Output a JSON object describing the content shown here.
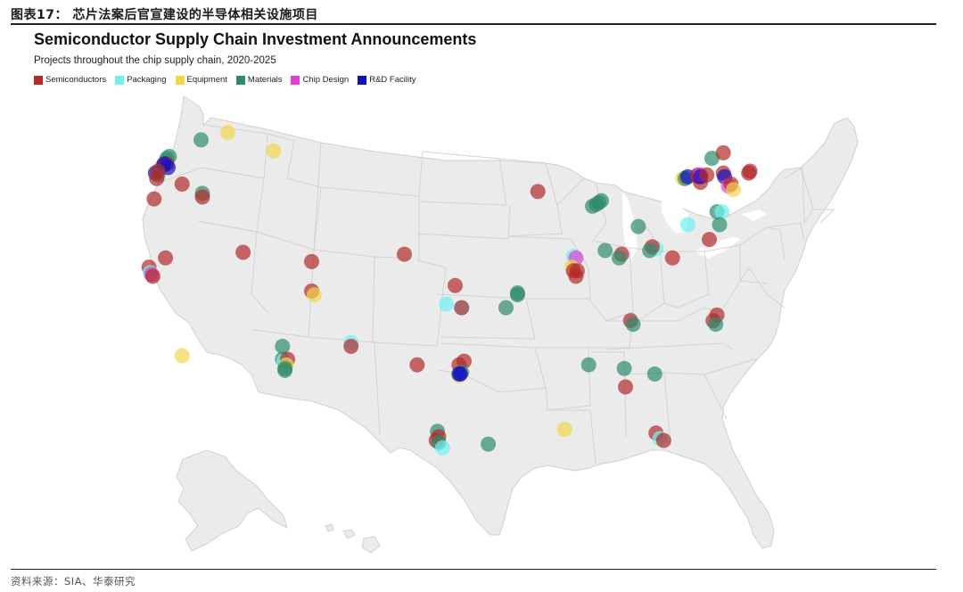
{
  "figure": {
    "title": "图表17： 芯片法案后官宣建设的半导体相关设施项目",
    "source": "资料来源：SIA、华泰研究"
  },
  "chart_data": {
    "type": "scatter",
    "title": "Semiconductor Supply Chain Investment Announcements",
    "subtitle": "Projects throughout the chip supply chain, 2020-2025",
    "legend_position": "top-left",
    "categories": [
      {
        "key": "sem",
        "name": "Semiconductors",
        "color": "#b22a2a"
      },
      {
        "key": "pkg",
        "name": "Packaging",
        "color": "#6ff2f2"
      },
      {
        "key": "eqp",
        "name": "Equipment",
        "color": "#f2d54b"
      },
      {
        "key": "mat",
        "name": "Materials",
        "color": "#2f8c6c"
      },
      {
        "key": "chp",
        "name": "Chip Design",
        "color": "#e23fd2"
      },
      {
        "key": "rnd",
        "name": "R&D Facility",
        "color": "#1111c4"
      }
    ],
    "points": [
      {
        "lon": -123.6,
        "lat": 46.1,
        "cat": "pkg"
      },
      {
        "lon": -123.6,
        "lat": 46.2,
        "cat": "mat"
      },
      {
        "lon": -123.4,
        "lat": 46.3,
        "cat": "mat"
      },
      {
        "lon": -123.6,
        "lat": 45.9,
        "cat": "sem"
      },
      {
        "lon": -123.9,
        "lat": 45.8,
        "cat": "sem"
      },
      {
        "lon": -123.8,
        "lat": 45.9,
        "cat": "rnd"
      },
      {
        "lon": -123.5,
        "lat": 45.7,
        "cat": "rnd"
      },
      {
        "lon": -124.5,
        "lat": 45.4,
        "cat": "rnd"
      },
      {
        "lon": -124.3,
        "lat": 45.3,
        "cat": "mat"
      },
      {
        "lon": -124.3,
        "lat": 45.5,
        "cat": "sem"
      },
      {
        "lon": -124.4,
        "lat": 45.1,
        "cat": "sem"
      },
      {
        "lon": -122.4,
        "lat": 44.8,
        "cat": "sem"
      },
      {
        "lon": -124.6,
        "lat": 44.0,
        "cat": "sem"
      },
      {
        "lon": -120.9,
        "lat": 47.2,
        "cat": "mat"
      },
      {
        "lon": -118.8,
        "lat": 47.6,
        "cat": "eqp"
      },
      {
        "lon": -115.2,
        "lat": 46.6,
        "cat": "eqp"
      },
      {
        "lon": -120.8,
        "lat": 44.3,
        "cat": "mat"
      },
      {
        "lon": -120.8,
        "lat": 44.1,
        "cat": "sem"
      },
      {
        "lon": -123.7,
        "lat": 40.8,
        "cat": "sem"
      },
      {
        "lon": -125.0,
        "lat": 40.3,
        "cat": "sem"
      },
      {
        "lon": -124.9,
        "lat": 40.0,
        "cat": "pkg"
      },
      {
        "lon": -124.8,
        "lat": 39.9,
        "cat": "chp"
      },
      {
        "lon": -124.7,
        "lat": 39.8,
        "cat": "sem"
      },
      {
        "lon": -117.6,
        "lat": 41.1,
        "cat": "sem"
      },
      {
        "lon": -122.4,
        "lat": 35.5,
        "cat": "eqp"
      },
      {
        "lon": -112.2,
        "lat": 40.6,
        "cat": "sem"
      },
      {
        "lon": -112.2,
        "lat": 39.0,
        "cat": "sem"
      },
      {
        "lon": -112.0,
        "lat": 38.8,
        "cat": "eqp"
      },
      {
        "lon": -114.5,
        "lat": 36.0,
        "cat": "mat"
      },
      {
        "lon": -114.5,
        "lat": 35.3,
        "cat": "mat"
      },
      {
        "lon": -114.4,
        "lat": 35.2,
        "cat": "pkg"
      },
      {
        "lon": -114.1,
        "lat": 35.3,
        "cat": "sem"
      },
      {
        "lon": -114.2,
        "lat": 35.0,
        "cat": "eqp"
      },
      {
        "lon": -114.3,
        "lat": 34.8,
        "cat": "mat"
      },
      {
        "lon": -114.3,
        "lat": 34.7,
        "cat": "mat"
      },
      {
        "lon": -109.1,
        "lat": 36.2,
        "cat": "pkg"
      },
      {
        "lon": -109.1,
        "lat": 36.0,
        "cat": "sem"
      },
      {
        "lon": -103.9,
        "lat": 35.0,
        "cat": "sem"
      },
      {
        "lon": -104.9,
        "lat": 41.0,
        "cat": "sem"
      },
      {
        "lon": -100.9,
        "lat": 39.3,
        "cat": "sem"
      },
      {
        "lon": -101.6,
        "lat": 38.3,
        "cat": "pkg"
      },
      {
        "lon": -100.4,
        "lat": 38.1,
        "cat": "pkg"
      },
      {
        "lon": -100.4,
        "lat": 38.1,
        "cat": "sem"
      },
      {
        "lon": -94.4,
        "lat": 44.4,
        "cat": "sem"
      },
      {
        "lon": -96.9,
        "lat": 38.1,
        "cat": "mat"
      },
      {
        "lon": -96.0,
        "lat": 38.9,
        "cat": "mat"
      },
      {
        "lon": -96.0,
        "lat": 38.8,
        "cat": "mat"
      },
      {
        "lon": -100.6,
        "lat": 35.0,
        "cat": "sem"
      },
      {
        "lon": -100.2,
        "lat": 35.2,
        "cat": "sem"
      },
      {
        "lon": -100.6,
        "lat": 34.4,
        "cat": "eqp"
      },
      {
        "lon": -100.4,
        "lat": 34.6,
        "cat": "mat"
      },
      {
        "lon": -100.6,
        "lat": 34.5,
        "cat": "rnd"
      },
      {
        "lon": -100.5,
        "lat": 34.5,
        "cat": "rnd"
      },
      {
        "lon": -102.3,
        "lat": 31.4,
        "cat": "mat"
      },
      {
        "lon": -102.2,
        "lat": 31.1,
        "cat": "sem"
      },
      {
        "lon": -102.4,
        "lat": 30.9,
        "cat": "sem"
      },
      {
        "lon": -102.2,
        "lat": 30.8,
        "cat": "mat"
      },
      {
        "lon": -101.9,
        "lat": 30.5,
        "cat": "pkg"
      },
      {
        "lon": -98.3,
        "lat": 30.7,
        "cat": "mat"
      },
      {
        "lon": -92.3,
        "lat": 31.5,
        "cat": "eqp"
      },
      {
        "lon": -91.6,
        "lat": 40.9,
        "cat": "pkg"
      },
      {
        "lon": -91.4,
        "lat": 40.8,
        "cat": "chp"
      },
      {
        "lon": -91.7,
        "lat": 40.3,
        "cat": "eqp"
      },
      {
        "lon": -91.6,
        "lat": 40.1,
        "cat": "sem"
      },
      {
        "lon": -91.3,
        "lat": 40.1,
        "cat": "sem"
      },
      {
        "lon": -91.4,
        "lat": 39.8,
        "cat": "sem"
      },
      {
        "lon": -90.1,
        "lat": 43.6,
        "cat": "mat"
      },
      {
        "lon": -89.8,
        "lat": 43.7,
        "cat": "mat"
      },
      {
        "lon": -89.6,
        "lat": 43.8,
        "cat": "mat"
      },
      {
        "lon": -89.4,
        "lat": 43.9,
        "cat": "mat"
      },
      {
        "lon": -89.1,
        "lat": 41.2,
        "cat": "mat"
      },
      {
        "lon": -87.8,
        "lat": 41.0,
        "cat": "sem"
      },
      {
        "lon": -88.0,
        "lat": 40.8,
        "cat": "mat"
      },
      {
        "lon": -85.1,
        "lat": 41.3,
        "cat": "pkg"
      },
      {
        "lon": -87.6,
        "lat": 34.8,
        "cat": "mat"
      },
      {
        "lon": -87.1,
        "lat": 37.4,
        "cat": "sem"
      },
      {
        "lon": -86.9,
        "lat": 37.2,
        "cat": "mat"
      },
      {
        "lon": -90.4,
        "lat": 35.0,
        "cat": "mat"
      },
      {
        "lon": -87.5,
        "lat": 33.8,
        "cat": "sem"
      },
      {
        "lon": -85.1,
        "lat": 31.3,
        "cat": "sem"
      },
      {
        "lon": -84.8,
        "lat": 31.0,
        "cat": "pkg"
      },
      {
        "lon": -84.5,
        "lat": 30.9,
        "cat": "sem"
      },
      {
        "lon": -83.8,
        "lat": 40.8,
        "cat": "sem"
      },
      {
        "lon": -83.0,
        "lat": 45.1,
        "cat": "eqp"
      },
      {
        "lon": -82.8,
        "lat": 45.1,
        "cat": "mat"
      },
      {
        "lon": -82.6,
        "lat": 45.2,
        "cat": "rnd"
      },
      {
        "lon": -81.6,
        "lat": 44.9,
        "cat": "sem"
      },
      {
        "lon": -81.8,
        "lat": 45.2,
        "cat": "sem"
      },
      {
        "lon": -81.8,
        "lat": 45.3,
        "cat": "sem"
      },
      {
        "lon": -81.6,
        "lat": 45.3,
        "cat": "chp"
      },
      {
        "lon": -81.6,
        "lat": 45.2,
        "cat": "rnd"
      },
      {
        "lon": -81.1,
        "lat": 45.3,
        "cat": "sem"
      },
      {
        "lon": -80.7,
        "lat": 46.2,
        "cat": "mat"
      },
      {
        "lon": -79.8,
        "lat": 46.5,
        "cat": "sem"
      },
      {
        "lon": -79.8,
        "lat": 45.4,
        "cat": "sem"
      },
      {
        "lon": -79.7,
        "lat": 45.2,
        "cat": "rnd"
      },
      {
        "lon": -79.4,
        "lat": 44.7,
        "cat": "chp"
      },
      {
        "lon": -79.2,
        "lat": 44.8,
        "cat": "sem"
      },
      {
        "lon": -79.0,
        "lat": 44.5,
        "cat": "eqp"
      },
      {
        "lon": -77.8,
        "lat": 45.4,
        "cat": "sem"
      },
      {
        "lon": -77.7,
        "lat": 45.5,
        "cat": "sem"
      },
      {
        "lon": -80.3,
        "lat": 43.3,
        "cat": "mat"
      },
      {
        "lon": -79.9,
        "lat": 43.3,
        "cat": "pkg"
      },
      {
        "lon": -80.1,
        "lat": 42.6,
        "cat": "mat"
      },
      {
        "lon": -80.9,
        "lat": 41.8,
        "cat": "sem"
      },
      {
        "lon": -82.6,
        "lat": 42.6,
        "cat": "pkg"
      },
      {
        "lon": -85.4,
        "lat": 41.4,
        "cat": "sem"
      },
      {
        "lon": -85.6,
        "lat": 41.2,
        "cat": "mat"
      },
      {
        "lon": -86.5,
        "lat": 42.5,
        "cat": "mat"
      },
      {
        "lon": -80.3,
        "lat": 37.7,
        "cat": "sem"
      },
      {
        "lon": -80.6,
        "lat": 37.4,
        "cat": "sem"
      },
      {
        "lon": -80.4,
        "lat": 37.2,
        "cat": "mat"
      },
      {
        "lon": -85.2,
        "lat": 34.5,
        "cat": "mat"
      }
    ]
  }
}
